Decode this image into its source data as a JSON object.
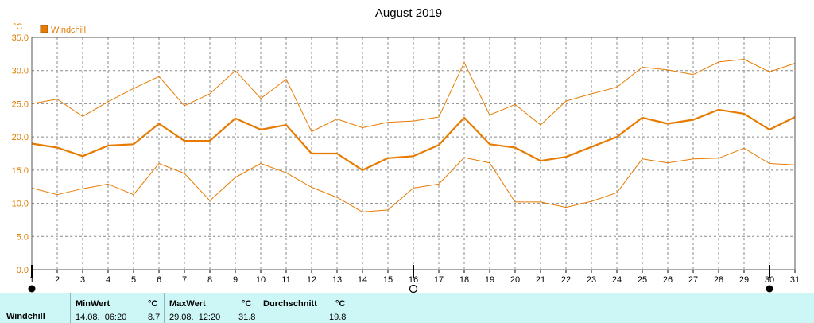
{
  "chart_data": {
    "type": "line",
    "title": "August 2019",
    "unit": "°C",
    "legend": "Windchill",
    "ylim": [
      0,
      35
    ],
    "yticks": [
      "0.0",
      "5.0",
      "10.0",
      "15.0",
      "20.0",
      "25.0",
      "30.0",
      "35.0"
    ],
    "x": [
      1,
      2,
      3,
      4,
      5,
      6,
      7,
      8,
      9,
      10,
      11,
      12,
      13,
      14,
      15,
      16,
      17,
      18,
      19,
      20,
      21,
      22,
      23,
      24,
      25,
      26,
      27,
      28,
      29,
      30,
      31
    ],
    "grid": true,
    "series": [
      {
        "role": "max",
        "values": [
          25.0,
          25.7,
          23.1,
          25.3,
          27.3,
          29.1,
          24.7,
          26.5,
          30.0,
          25.8,
          28.7,
          20.8,
          22.7,
          21.4,
          22.2,
          22.4,
          23.0,
          31.2,
          23.3,
          24.9,
          21.8,
          25.4,
          26.5,
          27.5,
          30.5,
          30.1,
          29.4,
          31.3,
          31.7,
          29.8,
          31.1
        ]
      },
      {
        "role": "avg",
        "values": [
          19.0,
          18.4,
          17.1,
          18.7,
          18.9,
          22.0,
          19.4,
          19.4,
          22.8,
          21.1,
          21.8,
          17.5,
          17.5,
          15.0,
          16.8,
          17.1,
          18.8,
          22.9,
          18.9,
          18.4,
          16.4,
          17.0,
          18.5,
          20.0,
          22.9,
          22.0,
          22.6,
          24.1,
          23.5,
          21.1,
          23.0
        ]
      },
      {
        "role": "min",
        "values": [
          12.3,
          11.3,
          12.2,
          12.9,
          11.3,
          16.0,
          14.5,
          10.4,
          13.9,
          16.0,
          14.6,
          12.4,
          10.9,
          8.7,
          9.0,
          12.3,
          12.9,
          16.9,
          16.1,
          10.2,
          10.2,
          9.4,
          10.3,
          11.6,
          16.7,
          16.1,
          16.7,
          16.8,
          18.3,
          16.0,
          15.8
        ]
      }
    ],
    "moon_markers": [
      {
        "day": 1,
        "phase": "full"
      },
      {
        "day": 16,
        "phase": "new"
      },
      {
        "day": 30,
        "phase": "full"
      }
    ],
    "colors": {
      "avg": "#e87a00",
      "band": "#e87a00",
      "grid": "#888888",
      "frame": "#555555",
      "statsbg": "#cdf6f6"
    }
  },
  "stats": {
    "label": "Windchill",
    "min_header": "MinWert",
    "min_unit": "°C",
    "min_time": "14.08.  06:20",
    "min_value": "8.7",
    "max_header": "MaxWert",
    "max_unit": "°C",
    "max_time": "29.08.  12:20",
    "max_value": "31.8",
    "avg_header": "Durchschnitt",
    "avg_unit": "°C",
    "avg_value": "19.8"
  }
}
